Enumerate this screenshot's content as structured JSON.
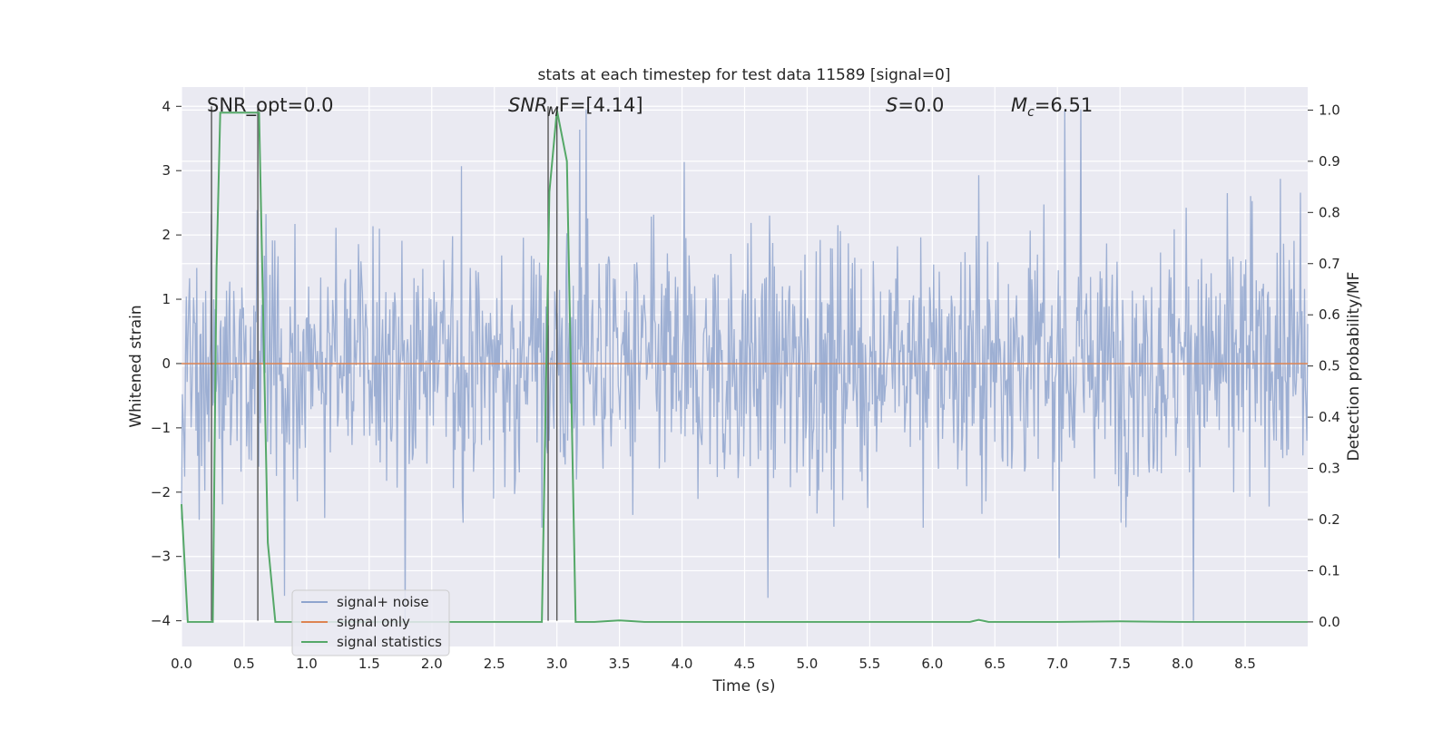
{
  "chart_data": {
    "type": "line",
    "title": "stats at each timestep for test data 11589 [signal=0]",
    "xlabel": "Time (s)",
    "ylabel_left": "Whitened strain",
    "ylabel_right": "Detection probability/MF",
    "xlim": [
      0.0,
      9.0
    ],
    "ylim_left": [
      -4.4,
      4.3
    ],
    "ylim_right": [
      -0.048,
      1.045
    ],
    "x_ticks": [
      "0.0",
      "0.5",
      "1.0",
      "1.5",
      "2.0",
      "2.5",
      "3.0",
      "3.5",
      "4.0",
      "4.5",
      "5.0",
      "5.5",
      "6.0",
      "6.5",
      "7.0",
      "7.5",
      "8.0",
      "8.5"
    ],
    "y_left_ticks": [
      "4",
      "3",
      "2",
      "1",
      "0",
      "−1",
      "−2",
      "−3",
      "−4"
    ],
    "y_right_ticks": [
      "1.0",
      "0.9",
      "0.8",
      "0.7",
      "0.6",
      "0.5",
      "0.4",
      "0.3",
      "0.2",
      "0.1",
      "0.0"
    ],
    "grid": true,
    "legend_position": "lower-left",
    "annotations": {
      "snr_opt": "SNR_opt=0.0",
      "snr_mf_main": "SNR",
      "snr_mf_sub": "M",
      "snr_mf_tail": "F=[4.14]",
      "s_main": "S",
      "s_tail": "=0.0",
      "mc_main": "M",
      "mc_sub": "c",
      "mc_tail": "=6.51"
    },
    "series": [
      {
        "name": "signal+ noise",
        "axis": "left",
        "color": "#8fa4ce",
        "description_of_data": "dense noise band, amplitude ~±1.5 with spikes to about ±3.5",
        "envelope": {
          "typical": 1.5,
          "max_pos": 3.95,
          "max_neg": -4.0
        }
      },
      {
        "name": "signal only",
        "axis": "left",
        "color": "#dd8452",
        "x": [
          0.0,
          9.0
        ],
        "y": [
          0.0,
          0.0
        ]
      },
      {
        "name": "signal statistics",
        "axis": "right",
        "color": "#55a868",
        "x": [
          0.0,
          0.05,
          0.25,
          0.28,
          0.31,
          0.5,
          0.62,
          0.69,
          0.75,
          0.9,
          1.0,
          2.5,
          2.88,
          2.94,
          3.0,
          3.08,
          3.15,
          3.3,
          3.5,
          3.7,
          6.3,
          6.37,
          6.45,
          7.0,
          7.5,
          8.0,
          9.0
        ],
        "y": [
          0.23,
          0.0,
          0.0,
          0.69,
          0.995,
          0.995,
          0.995,
          0.155,
          0.0,
          0.0,
          0.0,
          0.0,
          0.0,
          0.84,
          1.0,
          0.9,
          0.0,
          0.0,
          0.003,
          0.0,
          0.0,
          0.004,
          0.0,
          0.0,
          0.001,
          0.0,
          0.0
        ]
      }
    ],
    "vertical_markers": {
      "color": "#555555",
      "x": [
        0.24,
        0.61,
        2.93,
        3.0
      ]
    }
  }
}
